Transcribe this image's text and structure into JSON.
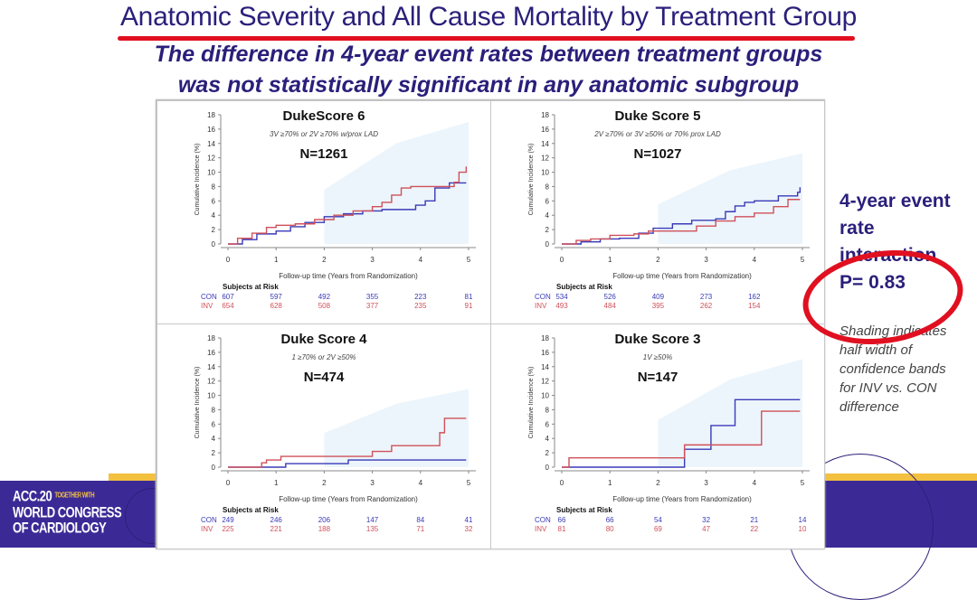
{
  "slide": {
    "title": "Anatomic Severity and All Cause Mortality by Treatment Group",
    "subtitle_line1": "The difference in 4-year event rates between treatment groups",
    "subtitle_line2": "was not statistically significant in any anatomic subgroup",
    "side_text": {
      "line1": "4-year event",
      "line2": "rate",
      "line3": "interaction",
      "line4": "P= 0.83"
    },
    "side_note": [
      "Shading indicates",
      "half width of",
      "confidence bands",
      "for INV vs. CON",
      "difference"
    ],
    "logo": {
      "line1": "ACC.20",
      "tag": "TOGETHER WITH",
      "line2": "WORLD CONGRESS",
      "line3": "OF CARDIOLOGY"
    },
    "colors": {
      "title": "#2a1f7a",
      "annotation_red": "#e01020",
      "con": "#3a3ab8",
      "inv": "#d0505a",
      "band": "#dcecf8",
      "footer": "#3b2a96",
      "footer_accent": "#f3c040"
    }
  },
  "chart_data": [
    {
      "type": "line",
      "title": "DukeScore 6",
      "description": "3V ≥70% or 2V ≥70% w/prox LAD",
      "n_label": "N=1261",
      "xlabel": "Follow-up time (Years from Randomization)",
      "ylabel": "Cumulative Incidence (%)",
      "xlim": [
        0,
        5
      ],
      "ylim": [
        0,
        18
      ],
      "xticks": [
        0,
        1,
        2,
        3,
        4,
        5
      ],
      "yticks": [
        0,
        2,
        4,
        6,
        8,
        10,
        12,
        14,
        16,
        18
      ],
      "series": [
        {
          "name": "CON",
          "x": [
            0,
            0.3,
            0.6,
            1.0,
            1.3,
            1.6,
            2.0,
            2.4,
            2.8,
            3.2,
            3.6,
            3.9,
            4.1,
            4.3,
            4.6,
            4.95
          ],
          "y": [
            0,
            0.6,
            1.4,
            1.8,
            2.4,
            3.0,
            3.8,
            4.2,
            4.6,
            4.8,
            4.8,
            5.4,
            6.0,
            7.8,
            8.5,
            8.5
          ]
        },
        {
          "name": "INV",
          "x": [
            0,
            0.2,
            0.5,
            0.8,
            1.0,
            1.4,
            1.8,
            2.2,
            2.6,
            3.0,
            3.2,
            3.4,
            3.6,
            3.8,
            4.4,
            4.7,
            4.8,
            4.95
          ],
          "y": [
            0,
            0.8,
            1.5,
            2.3,
            2.6,
            2.8,
            3.4,
            4.0,
            4.6,
            5.2,
            5.8,
            6.8,
            7.8,
            8.0,
            8.0,
            8.6,
            10.0,
            10.8
          ]
        }
      ],
      "risk_table": {
        "header": "Subjects at Risk",
        "rows": [
          {
            "label": "CON",
            "values": [
              607,
              597,
              492,
              355,
              223,
              81
            ]
          },
          {
            "label": "INV",
            "values": [
              654,
              628,
              508,
              377,
              235,
              91
            ]
          }
        ]
      }
    },
    {
      "type": "line",
      "title": "Duke Score 5",
      "description": "2V ≥70% or 3V ≥50% or 70% prox LAD",
      "n_label": "N=1027",
      "xlabel": "Follow-up time (Years from Randomization)",
      "ylabel": "Cumulative Incidence (%)",
      "xlim": [
        0,
        5
      ],
      "ylim": [
        0,
        18
      ],
      "xticks": [
        0,
        1,
        2,
        3,
        4,
        5
      ],
      "yticks": [
        0,
        2,
        4,
        6,
        8,
        10,
        12,
        14,
        16,
        18
      ],
      "series": [
        {
          "name": "CON",
          "x": [
            0,
            0.4,
            0.8,
            1.2,
            1.6,
            1.9,
            2.3,
            2.7,
            3.2,
            3.4,
            3.6,
            3.8,
            4.0,
            4.5,
            4.9,
            4.95
          ],
          "y": [
            0,
            0.3,
            0.7,
            0.8,
            1.5,
            2.2,
            2.8,
            3.3,
            3.5,
            4.5,
            5.3,
            5.8,
            6.0,
            6.7,
            7.2,
            7.9
          ]
        },
        {
          "name": "INV",
          "x": [
            0,
            0.3,
            0.6,
            1.0,
            1.5,
            1.8,
            2.5,
            2.8,
            3.2,
            3.6,
            4.0,
            4.4,
            4.7,
            4.95
          ],
          "y": [
            0,
            0.5,
            0.7,
            1.2,
            1.4,
            1.8,
            1.8,
            2.5,
            3.2,
            3.8,
            4.3,
            5.2,
            6.2,
            6.2
          ]
        }
      ],
      "risk_table": {
        "header": "Subjects at Risk",
        "rows": [
          {
            "label": "CON",
            "values": [
              534,
              526,
              409,
              273,
              162,
              ""
            ]
          },
          {
            "label": "INV",
            "values": [
              493,
              484,
              395,
              262,
              154,
              ""
            ]
          }
        ]
      }
    },
    {
      "type": "line",
      "title": "Duke Score 4",
      "description": "1 ≥70% or 2V ≥50%",
      "n_label": "N=474",
      "xlabel": "Follow-up time (Years from Randomization)",
      "ylabel": "Cumulative Incidence (%)",
      "xlim": [
        0,
        5
      ],
      "ylim": [
        0,
        18
      ],
      "xticks": [
        0,
        1,
        2,
        3,
        4,
        5
      ],
      "yticks": [
        0,
        2,
        4,
        6,
        8,
        10,
        12,
        14,
        16,
        18
      ],
      "series": [
        {
          "name": "CON",
          "x": [
            0,
            0.8,
            1.2,
            2.5,
            4.95
          ],
          "y": [
            0,
            0,
            0.5,
            1.0,
            1.0
          ]
        },
        {
          "name": "INV",
          "x": [
            0,
            0.7,
            0.8,
            1.0,
            1.1,
            2.5,
            3.0,
            3.4,
            4.3,
            4.4,
            4.5,
            4.95
          ],
          "y": [
            0,
            0.6,
            1.0,
            1.0,
            1.5,
            1.5,
            2.2,
            3.0,
            3.0,
            4.8,
            6.8,
            6.8
          ]
        }
      ],
      "risk_table": {
        "header": "Subjects at Risk",
        "rows": [
          {
            "label": "CON",
            "values": [
              249,
              246,
              206,
              147,
              84,
              41
            ]
          },
          {
            "label": "INV",
            "values": [
              225,
              221,
              188,
              135,
              71,
              32
            ]
          }
        ]
      }
    },
    {
      "type": "line",
      "title": "Duke Score 3",
      "description": "1V ≥50%",
      "n_label": "N=147",
      "xlabel": "Follow-up time (Years from Randomization)",
      "ylabel": "Cumulative Incidence (%)",
      "xlim": [
        0,
        5
      ],
      "ylim": [
        0,
        18
      ],
      "xticks": [
        0,
        1,
        2,
        3,
        4,
        5
      ],
      "yticks": [
        0,
        2,
        4,
        6,
        8,
        10,
        12,
        14,
        16,
        18
      ],
      "series": [
        {
          "name": "CON",
          "x": [
            0,
            2.55,
            3.1,
            3.6,
            4.95
          ],
          "y": [
            0,
            2.5,
            5.8,
            9.4,
            9.4
          ]
        },
        {
          "name": "INV",
          "x": [
            0,
            0.15,
            2.55,
            4.15,
            4.95
          ],
          "y": [
            0,
            1.3,
            3.1,
            7.8,
            7.8
          ]
        }
      ],
      "risk_table": {
        "header": "Subjects at Risk",
        "rows": [
          {
            "label": "CON",
            "values": [
              66,
              66,
              54,
              32,
              21,
              14
            ]
          },
          {
            "label": "INV",
            "values": [
              81,
              80,
              69,
              47,
              22,
              10
            ]
          }
        ]
      }
    }
  ]
}
